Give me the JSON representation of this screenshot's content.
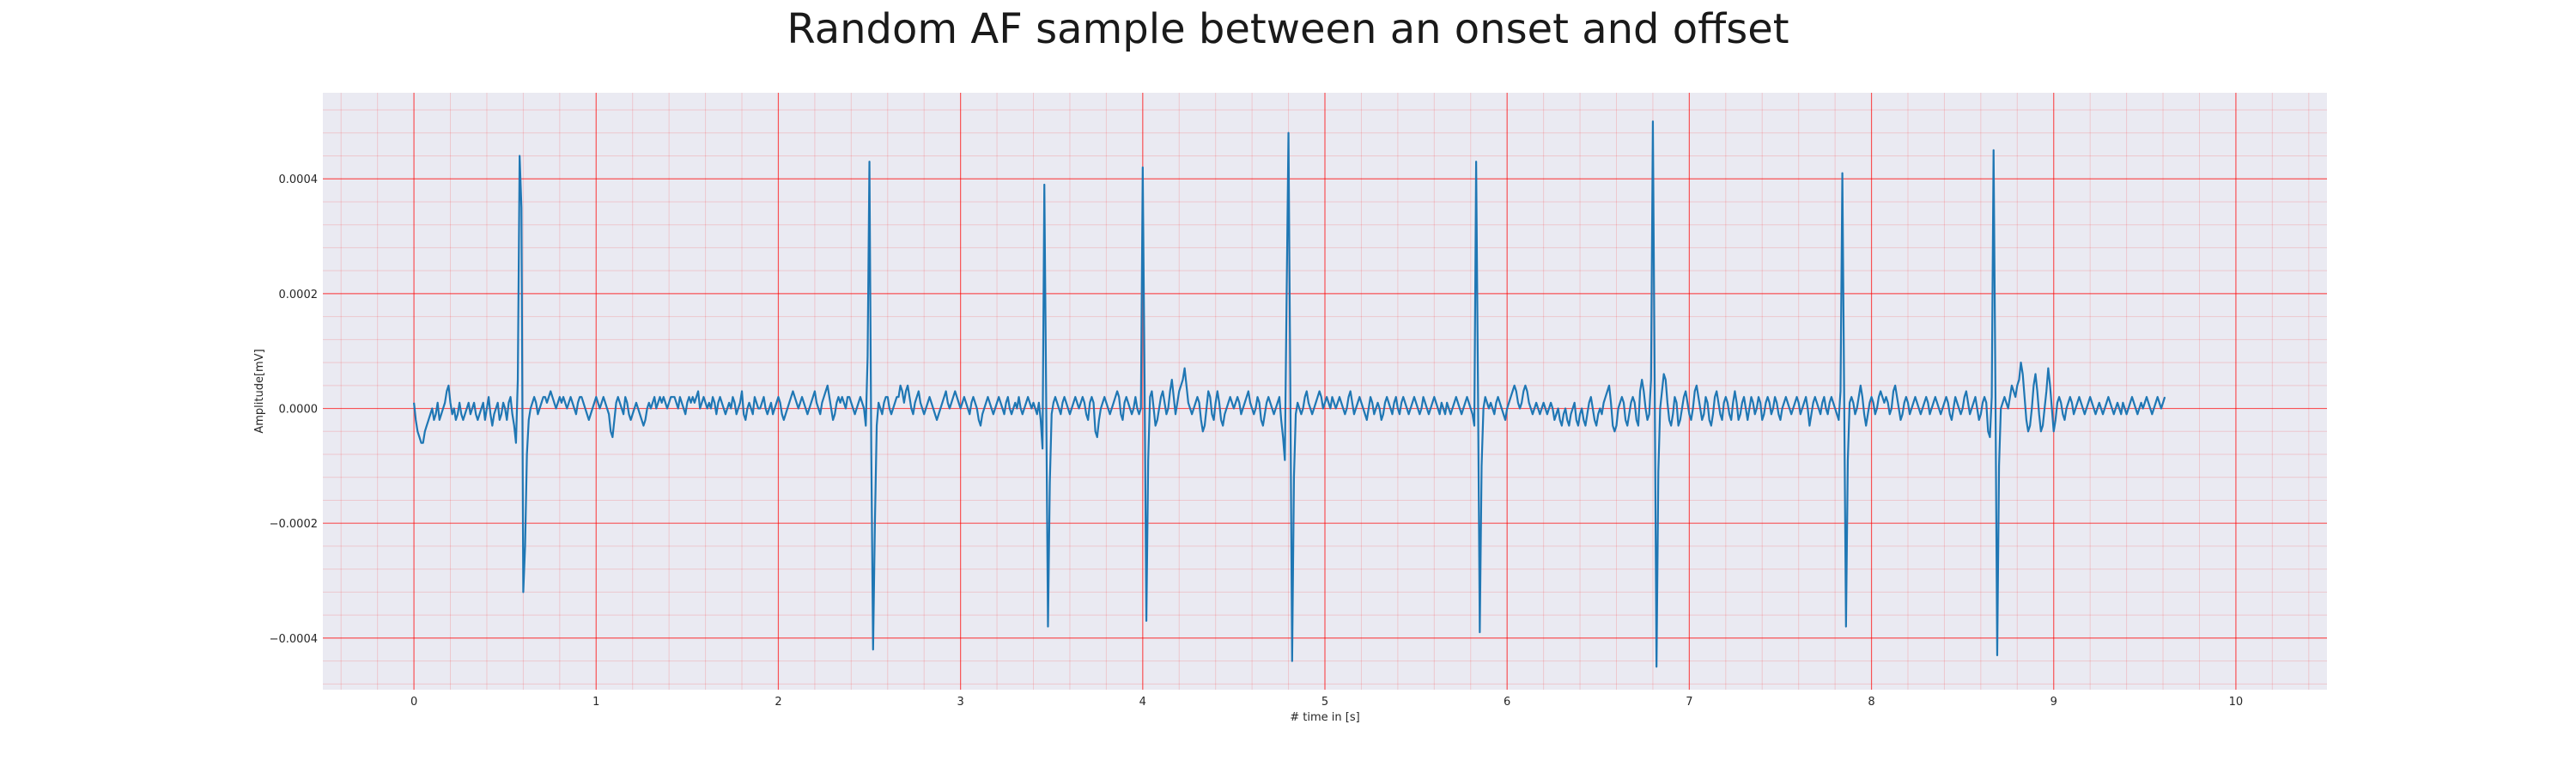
{
  "chart_data": {
    "type": "line",
    "title": "Random AF sample between an onset and offset",
    "xlabel": "# time in [s]",
    "ylabel": "Amplitude[mV]",
    "xlim": [
      -0.5,
      10.5
    ],
    "ylim": [
      -0.00049,
      0.00055
    ],
    "xticks": [
      0,
      1,
      2,
      3,
      4,
      5,
      6,
      7,
      8,
      9,
      10
    ],
    "xtick_labels": [
      "0",
      "1",
      "2",
      "3",
      "4",
      "5",
      "6",
      "7",
      "8",
      "9",
      "10"
    ],
    "yticks": [
      -0.0004,
      -0.0002,
      0.0,
      0.0002,
      0.0004
    ],
    "ytick_labels": [
      "−0.0004",
      "−0.0002",
      "0.0000",
      "0.0002",
      "0.0004"
    ],
    "grid": true,
    "minor_grid": true,
    "background": "#eaeaf2",
    "grid_color": "#ff0000",
    "line_color": "#1f77b4",
    "sample_rate_hz": 100,
    "series": [
      {
        "x_start": 0.0,
        "x_step": 0.01,
        "values": [
          1e-05,
          -2e-05,
          -4e-05,
          -5e-05,
          -6e-05,
          -6e-05,
          -4e-05,
          -3e-05,
          -2e-05,
          -1e-05,
          0.0,
          -2e-05,
          -1e-05,
          1e-05,
          -2e-05,
          -1e-05,
          0.0,
          1e-05,
          3e-05,
          4e-05,
          1e-05,
          -1e-05,
          0.0,
          -2e-05,
          -1e-05,
          1e-05,
          -1e-05,
          -2e-05,
          -1e-05,
          0.0,
          1e-05,
          -1e-05,
          0.0,
          1e-05,
          -1e-05,
          -2e-05,
          -1e-05,
          0.0,
          1e-05,
          -2e-05,
          0.0,
          2e-05,
          -1e-05,
          -3e-05,
          -1e-05,
          0.0,
          1e-05,
          -2e-05,
          -1e-05,
          1e-05,
          0.0,
          -2e-05,
          1e-05,
          2e-05,
          -1e-05,
          -3e-05,
          -6e-05,
          5e-05,
          0.00044,
          0.00035,
          -0.00032,
          -0.00024,
          -8e-05,
          -2e-05,
          0.0,
          1e-05,
          2e-05,
          1e-05,
          -1e-05,
          0.0,
          1e-05,
          2e-05,
          2e-05,
          1e-05,
          2e-05,
          3e-05,
          2e-05,
          1e-05,
          0.0,
          1e-05,
          2e-05,
          1e-05,
          2e-05,
          1e-05,
          0.0,
          1e-05,
          2e-05,
          1e-05,
          0.0,
          -1e-05,
          1e-05,
          2e-05,
          2e-05,
          1e-05,
          0.0,
          -1e-05,
          -2e-05,
          -1e-05,
          0.0,
          1e-05,
          2e-05,
          1e-05,
          0.0,
          1e-05,
          2e-05,
          1e-05,
          0.0,
          -1e-05,
          -4e-05,
          -5e-05,
          -2e-05,
          1e-05,
          2e-05,
          1e-05,
          0.0,
          -1e-05,
          2e-05,
          1e-05,
          -1e-05,
          -2e-05,
          -1e-05,
          0.0,
          1e-05,
          0.0,
          -1e-05,
          -2e-05,
          -3e-05,
          -2e-05,
          0.0,
          1e-05,
          0.0,
          1e-05,
          2e-05,
          0.0,
          1e-05,
          2e-05,
          1e-05,
          2e-05,
          1e-05,
          0.0,
          1e-05,
          2e-05,
          2e-05,
          2e-05,
          1e-05,
          0.0,
          2e-05,
          1e-05,
          0.0,
          -1e-05,
          1e-05,
          2e-05,
          1e-05,
          2e-05,
          1e-05,
          2e-05,
          3e-05,
          0.0,
          1e-05,
          2e-05,
          1e-05,
          0.0,
          1e-05,
          0.0,
          2e-05,
          1e-05,
          -1e-05,
          1e-05,
          2e-05,
          1e-05,
          0.0,
          -1e-05,
          0.0,
          1e-05,
          0.0,
          2e-05,
          1e-05,
          -1e-05,
          0.0,
          1e-05,
          3e-05,
          -1e-05,
          -2e-05,
          0.0,
          1e-05,
          0.0,
          -1e-05,
          2e-05,
          1e-05,
          0.0,
          0.0,
          1e-05,
          2e-05,
          0.0,
          -1e-05,
          0.0,
          1e-05,
          -1e-05,
          0.0,
          1e-05,
          2e-05,
          1e-05,
          -1e-05,
          -2e-05,
          -1e-05,
          0.0,
          1e-05,
          2e-05,
          3e-05,
          2e-05,
          1e-05,
          0.0,
          1e-05,
          2e-05,
          1e-05,
          0.0,
          -1e-05,
          0.0,
          1e-05,
          2e-05,
          3e-05,
          1e-05,
          0.0,
          -1e-05,
          1e-05,
          2e-05,
          3e-05,
          4e-05,
          2e-05,
          0.0,
          -2e-05,
          -1e-05,
          1e-05,
          2e-05,
          1e-05,
          2e-05,
          1e-05,
          0.0,
          2e-05,
          2e-05,
          1e-05,
          0.0,
          -1e-05,
          0.0,
          1e-05,
          2e-05,
          1e-05,
          0.0,
          -3e-05,
          9e-05,
          0.00043,
          -7e-05,
          -0.00042,
          -0.0002,
          -3e-05,
          1e-05,
          0.0,
          -1e-05,
          1e-05,
          2e-05,
          2e-05,
          0.0,
          -1e-05,
          0.0,
          1e-05,
          2e-05,
          2e-05,
          4e-05,
          3e-05,
          1e-05,
          3e-05,
          4e-05,
          2e-05,
          0.0,
          -1e-05,
          1e-05,
          2e-05,
          3e-05,
          1e-05,
          0.0,
          -1e-05,
          0.0,
          1e-05,
          2e-05,
          1e-05,
          0.0,
          -1e-05,
          -2e-05,
          -1e-05,
          0.0,
          1e-05,
          2e-05,
          3e-05,
          1e-05,
          0.0,
          1e-05,
          2e-05,
          3e-05,
          2e-05,
          1e-05,
          0.0,
          1e-05,
          2e-05,
          1e-05,
          0.0,
          -1e-05,
          1e-05,
          2e-05,
          1e-05,
          0.0,
          -2e-05,
          -3e-05,
          -1e-05,
          0.0,
          1e-05,
          2e-05,
          1e-05,
          0.0,
          -1e-05,
          0.0,
          1e-05,
          2e-05,
          1e-05,
          0.0,
          -1e-05,
          1e-05,
          2e-05,
          0.0,
          -1e-05,
          0.0,
          1e-05,
          0.0,
          2e-05,
          0.0,
          -1e-05,
          0.0,
          1e-05,
          2e-05,
          1e-05,
          0.0,
          1e-05,
          0.0,
          -1e-05,
          1e-05,
          -2e-05,
          -7e-05,
          0.00039,
          2e-05,
          -0.00038,
          -0.00013,
          -1e-05,
          1e-05,
          2e-05,
          1e-05,
          0.0,
          -1e-05,
          1e-05,
          2e-05,
          1e-05,
          0.0,
          -1e-05,
          0.0,
          1e-05,
          2e-05,
          1e-05,
          0.0,
          1e-05,
          2e-05,
          1e-05,
          -1e-05,
          -2e-05,
          1e-05,
          2e-05,
          1e-05,
          -4e-05,
          -5e-05,
          -2e-05,
          0.0,
          1e-05,
          2e-05,
          1e-05,
          0.0,
          -1e-05,
          0.0,
          1e-05,
          2e-05,
          3e-05,
          2e-05,
          -1e-05,
          -2e-05,
          1e-05,
          2e-05,
          1e-05,
          0.0,
          -1e-05,
          0.0,
          2e-05,
          0.0,
          -1e-05,
          0.0,
          0.00042,
          5e-05,
          -0.00037,
          -9e-05,
          2e-05,
          3e-05,
          0.0,
          -3e-05,
          -2e-05,
          0.0,
          2e-05,
          3e-05,
          1e-05,
          -1e-05,
          0.0,
          3e-05,
          5e-05,
          2e-05,
          -1e-05,
          1e-05,
          3e-05,
          4e-05,
          5e-05,
          7e-05,
          4e-05,
          1e-05,
          0.0,
          -1e-05,
          0.0,
          1e-05,
          2e-05,
          1e-05,
          -2e-05,
          -4e-05,
          -3e-05,
          0.0,
          3e-05,
          2e-05,
          -1e-05,
          -2e-05,
          1e-05,
          3e-05,
          1e-05,
          -2e-05,
          -3e-05,
          -1e-05,
          0.0,
          1e-05,
          2e-05,
          1e-05,
          0.0,
          1e-05,
          2e-05,
          1e-05,
          -1e-05,
          0.0,
          1e-05,
          2e-05,
          3e-05,
          1e-05,
          0.0,
          -1e-05,
          0.0,
          2e-05,
          1e-05,
          -2e-05,
          -3e-05,
          -1e-05,
          1e-05,
          2e-05,
          1e-05,
          0.0,
          -1e-05,
          0.0,
          1e-05,
          2e-05,
          -2e-05,
          -5e-05,
          -9e-05,
          0.0002,
          0.00048,
          4e-05,
          -0.00044,
          -0.00012,
          -1e-05,
          1e-05,
          0.0,
          -1e-05,
          0.0,
          2e-05,
          3e-05,
          1e-05,
          0.0,
          -1e-05,
          0.0,
          1e-05,
          2e-05,
          3e-05,
          2e-05,
          0.0,
          1e-05,
          2e-05,
          1e-05,
          0.0,
          2e-05,
          1e-05,
          0.0,
          1e-05,
          2e-05,
          1e-05,
          0.0,
          -1e-05,
          0.0,
          2e-05,
          3e-05,
          1e-05,
          -1e-05,
          0.0,
          1e-05,
          2e-05,
          1e-05,
          0.0,
          -1e-05,
          -2e-05,
          0.0,
          2e-05,
          1e-05,
          -1e-05,
          0.0,
          1e-05,
          0.0,
          -2e-05,
          -1e-05,
          1e-05,
          2e-05,
          1e-05,
          0.0,
          -1e-05,
          1e-05,
          2e-05,
          0.0,
          -1e-05,
          1e-05,
          2e-05,
          1e-05,
          0.0,
          -1e-05,
          0.0,
          1e-05,
          2e-05,
          1e-05,
          0.0,
          -1e-05,
          0.0,
          2e-05,
          1e-05,
          0.0,
          -1e-05,
          0.0,
          1e-05,
          2e-05,
          1e-05,
          0.0,
          -1e-05,
          1e-05,
          0.0,
          -1e-05,
          1e-05,
          0.0,
          -1e-05,
          0.0,
          1e-05,
          2e-05,
          1e-05,
          0.0,
          -1e-05,
          0.0,
          1e-05,
          2e-05,
          1e-05,
          0.0,
          -1e-05,
          -3e-05,
          0.00043,
          4e-05,
          -0.00039,
          -0.0001,
          0.0,
          2e-05,
          1e-05,
          0.0,
          1e-05,
          0.0,
          -1e-05,
          1e-05,
          2e-05,
          1e-05,
          0.0,
          -1e-05,
          -2e-05,
          0.0,
          1e-05,
          2e-05,
          3e-05,
          4e-05,
          3e-05,
          1e-05,
          0.0,
          1e-05,
          3e-05,
          4e-05,
          3e-05,
          1e-05,
          0.0,
          -1e-05,
          0.0,
          1e-05,
          0.0,
          -1e-05,
          0.0,
          1e-05,
          0.0,
          -1e-05,
          0.0,
          1e-05,
          0.0,
          -2e-05,
          -1e-05,
          0.0,
          -2e-05,
          -3e-05,
          -1e-05,
          0.0,
          -2e-05,
          -3e-05,
          -1e-05,
          0.0,
          1e-05,
          -2e-05,
          -3e-05,
          -1e-05,
          0.0,
          -2e-05,
          -3e-05,
          -1e-05,
          1e-05,
          2e-05,
          0.0,
          -2e-05,
          -3e-05,
          -1e-05,
          0.0,
          -1e-05,
          1e-05,
          2e-05,
          3e-05,
          4e-05,
          1e-05,
          -3e-05,
          -4e-05,
          -3e-05,
          0.0,
          1e-05,
          2e-05,
          1e-05,
          -2e-05,
          -3e-05,
          -1e-05,
          1e-05,
          2e-05,
          1e-05,
          -2e-05,
          -3e-05,
          3e-05,
          5e-05,
          3e-05,
          0.0,
          -2e-05,
          -1e-05,
          5e-05,
          0.0005,
          4e-05,
          -0.00045,
          -0.00011,
          0.0,
          3e-05,
          6e-05,
          5e-05,
          1e-05,
          -2e-05,
          -3e-05,
          -1e-05,
          2e-05,
          1e-05,
          -3e-05,
          -2e-05,
          0.0,
          2e-05,
          3e-05,
          1e-05,
          -1e-05,
          -2e-05,
          0.0,
          3e-05,
          4e-05,
          2e-05,
          0.0,
          -2e-05,
          -1e-05,
          2e-05,
          1e-05,
          -2e-05,
          -3e-05,
          -1e-05,
          2e-05,
          3e-05,
          1e-05,
          -1e-05,
          -2e-05,
          1e-05,
          2e-05,
          1e-05,
          -1e-05,
          -2e-05,
          1e-05,
          3e-05,
          1e-05,
          -2e-05,
          -1e-05,
          1e-05,
          2e-05,
          0.0,
          -2e-05,
          0.0,
          2e-05,
          1e-05,
          -1e-05,
          0.0,
          2e-05,
          1e-05,
          -2e-05,
          -1e-05,
          1e-05,
          2e-05,
          1e-05,
          -1e-05,
          0.0,
          2e-05,
          1e-05,
          -1e-05,
          -2e-05,
          0.0,
          1e-05,
          2e-05,
          1e-05,
          0.0,
          -1e-05,
          0.0,
          1e-05,
          2e-05,
          1e-05,
          -1e-05,
          0.0,
          1e-05,
          2e-05,
          0.0,
          -3e-05,
          -1e-05,
          1e-05,
          2e-05,
          1e-05,
          0.0,
          -1e-05,
          1e-05,
          2e-05,
          0.0,
          -1e-05,
          1e-05,
          2e-05,
          1e-05,
          0.0,
          -1e-05,
          -2e-05,
          3e-05,
          0.00041,
          2e-05,
          -0.00038,
          -9e-05,
          1e-05,
          2e-05,
          1e-05,
          -1e-05,
          0.0,
          2e-05,
          4e-05,
          2e-05,
          -1e-05,
          -3e-05,
          -1e-05,
          1e-05,
          2e-05,
          1e-05,
          -1e-05,
          0.0,
          2e-05,
          3e-05,
          2e-05,
          1e-05,
          2e-05,
          1e-05,
          -1e-05,
          0.0,
          3e-05,
          4e-05,
          2e-05,
          0.0,
          -2e-05,
          -1e-05,
          1e-05,
          2e-05,
          1e-05,
          -1e-05,
          0.0,
          1e-05,
          2e-05,
          1e-05,
          0.0,
          -1e-05,
          0.0,
          1e-05,
          2e-05,
          1e-05,
          -1e-05,
          0.0,
          1e-05,
          2e-05,
          1e-05,
          0.0,
          -1e-05,
          0.0,
          1e-05,
          2e-05,
          1e-05,
          -1e-05,
          -2e-05,
          0.0,
          2e-05,
          1e-05,
          0.0,
          -1e-05,
          0.0,
          2e-05,
          3e-05,
          1e-05,
          -1e-05,
          0.0,
          1e-05,
          2e-05,
          0.0,
          -2e-05,
          -1e-05,
          1e-05,
          2e-05,
          1e-05,
          -4e-05,
          -5e-05,
          2e-05,
          0.00045,
          4e-05,
          -0.00043,
          -0.0001,
          0.0,
          1e-05,
          2e-05,
          1e-05,
          0.0,
          2e-05,
          4e-05,
          3e-05,
          2e-05,
          4e-05,
          5e-05,
          8e-05,
          6e-05,
          2e-05,
          -2e-05,
          -4e-05,
          -3e-05,
          0.0,
          4e-05,
          6e-05,
          3e-05,
          -1e-05,
          -4e-05,
          -3e-05,
          0.0,
          3e-05,
          7e-05,
          4e-05,
          0.0,
          -4e-05,
          -2e-05,
          1e-05,
          2e-05,
          1e-05,
          -1e-05,
          -2e-05,
          0.0,
          1e-05,
          2e-05,
          1e-05,
          -1e-05,
          0.0,
          1e-05,
          2e-05,
          1e-05,
          0.0,
          -1e-05,
          0.0,
          1e-05,
          2e-05,
          1e-05,
          0.0,
          -1e-05,
          0.0,
          1e-05,
          0.0,
          -1e-05,
          0.0,
          1e-05,
          2e-05,
          1e-05,
          0.0,
          -1e-05,
          0.0,
          1e-05,
          0.0,
          -1e-05,
          1e-05,
          0.0,
          -1e-05,
          0.0,
          1e-05,
          2e-05,
          1e-05,
          0.0,
          -1e-05,
          0.0,
          1e-05,
          0.0,
          1e-05,
          2e-05,
          1e-05,
          0.0,
          -1e-05,
          0.0,
          1e-05,
          2e-05,
          1e-05,
          0.0,
          1e-05,
          2e-05
        ]
      }
    ]
  }
}
